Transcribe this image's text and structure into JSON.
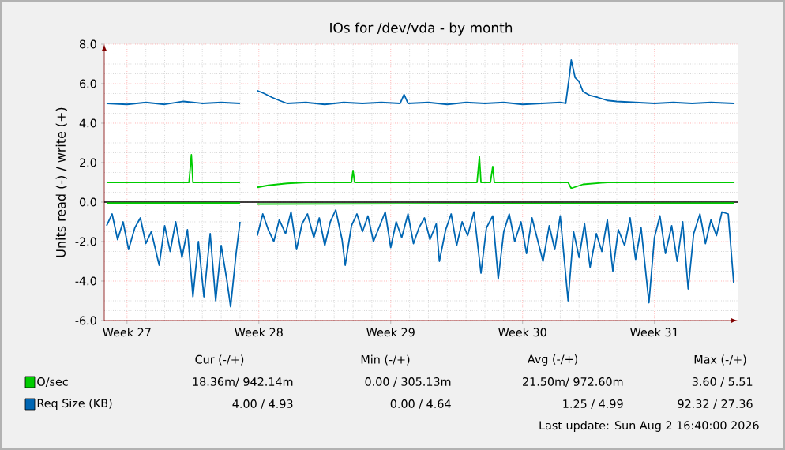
{
  "chart_data": {
    "type": "line",
    "title": "IOs for /dev/vda - by month",
    "ylabel": "Units read (-) / write (+)",
    "xlim": [
      "2026-06-27T19:00",
      "2026-07-31T10:00"
    ],
    "ylim": [
      -6,
      8
    ],
    "xticks": [
      {
        "value": "2026-06-29",
        "label": "Week 27"
      },
      {
        "value": "2026-07-06",
        "label": "Week 28"
      },
      {
        "value": "2026-07-13",
        "label": "Week 29"
      },
      {
        "value": "2026-07-20",
        "label": "Week 30"
      },
      {
        "value": "2026-07-27",
        "label": "Week 31"
      }
    ],
    "yticks": [
      {
        "value": -6,
        "label": "-6.0"
      },
      {
        "value": -4,
        "label": "-4.0"
      },
      {
        "value": -2,
        "label": "-2.0"
      },
      {
        "value": 0,
        "label": "0.0"
      },
      {
        "value": 2,
        "label": "2.0"
      },
      {
        "value": 4,
        "label": "4.0"
      },
      {
        "value": 6,
        "label": "6.0"
      },
      {
        "value": 8,
        "label": "8.0"
      }
    ],
    "grid": true,
    "legend": "bottom",
    "ref_lines": [
      {
        "axis": "y",
        "value": 0,
        "color": "#000000"
      }
    ],
    "series": [
      {
        "name": "O/sec",
        "color": "#00cc00",
        "x": [
          "2026-06-27T22:00",
          "2026-07-02T07:00",
          "2026-07-02T10:00",
          "2026-07-02T12:00",
          "2026-07-05T00:00",
          "2026-07-05T11:00",
          "2026-07-05T22:00",
          "2026-07-06T12:00",
          "2026-07-07T12:00",
          "2026-07-08T12:00",
          "2026-07-10T22:00",
          "2026-07-11T00:00",
          "2026-07-11T02:00",
          "2026-07-17T14:00",
          "2026-07-17T17:00",
          "2026-07-17T19:00",
          "2026-07-18T07:00",
          "2026-07-18T10:00",
          "2026-07-18T12:00",
          "2026-07-22T10:00",
          "2026-07-22T14:00",
          "2026-07-23T05:00",
          "2026-07-24T12:00",
          "2026-07-31T05:00"
        ],
        "values": [
          1.0,
          1.0,
          2.4,
          1.0,
          1.0,
          null,
          0.75,
          0.85,
          0.95,
          1.0,
          1.0,
          1.6,
          1.0,
          1.0,
          2.3,
          1.0,
          1.0,
          1.8,
          1.0,
          1.0,
          0.7,
          0.9,
          1.0,
          1.0
        ]
      },
      {
        "color": "#00cc00",
        "x": [
          "2026-06-27T22:00",
          "2026-07-05T00:00",
          "2026-07-05T11:00",
          "2026-07-05T22:00",
          "2026-07-31T05:00"
        ],
        "values": [
          -0.05,
          -0.05,
          null,
          -0.1,
          -0.05
        ]
      },
      {
        "name": "Req Size (KB)",
        "color": "#0066b3",
        "x": [
          "2026-06-27T22:00",
          "2026-06-29T00:00",
          "2026-06-30T00:00",
          "2026-07-01T00:00",
          "2026-07-02T00:00",
          "2026-07-03T00:00",
          "2026-07-04T00:00",
          "2026-07-05T00:00",
          "2026-07-05T11:00",
          "2026-07-05T22:00",
          "2026-07-06T07:00",
          "2026-07-06T17:00",
          "2026-07-07T02:00",
          "2026-07-07T12:00",
          "2026-07-08T12:00",
          "2026-07-09T12:00",
          "2026-07-10T12:00",
          "2026-07-11T12:00",
          "2026-07-12T12:00",
          "2026-07-13T12:00",
          "2026-07-13T17:00",
          "2026-07-13T22:00",
          "2026-07-15T00:00",
          "2026-07-16T00:00",
          "2026-07-17T00:00",
          "2026-07-18T00:00",
          "2026-07-19T00:00",
          "2026-07-20T00:00",
          "2026-07-21T00:00",
          "2026-07-22T00:00",
          "2026-07-22T07:00",
          "2026-07-22T12:00",
          "2026-07-22T14:00",
          "2026-07-22T19:00",
          "2026-07-23T00:00",
          "2026-07-23T05:00",
          "2026-07-23T14:00",
          "2026-07-24T00:00",
          "2026-07-24T12:00",
          "2026-07-25T00:00",
          "2026-07-26T00:00",
          "2026-07-27T00:00",
          "2026-07-28T00:00",
          "2026-07-29T00:00",
          "2026-07-30T00:00",
          "2026-07-31T05:00"
        ],
        "values": [
          5.0,
          4.95,
          5.05,
          4.95,
          5.1,
          5.0,
          5.05,
          5.0,
          null,
          5.65,
          5.5,
          5.3,
          5.15,
          5.0,
          5.05,
          4.95,
          5.05,
          5.0,
          5.05,
          5.0,
          5.45,
          5.0,
          5.05,
          4.95,
          5.05,
          5.0,
          5.05,
          4.95,
          5.0,
          5.05,
          5.0,
          6.5,
          7.2,
          6.3,
          6.1,
          5.6,
          5.4,
          5.3,
          5.15,
          5.1,
          5.05,
          5.0,
          5.05,
          5.0,
          5.05,
          5.0
        ]
      },
      {
        "color": "#0066b3",
        "x": [
          "2026-06-27T22:00",
          "2026-06-28T05:00",
          "2026-06-28T12:00",
          "2026-06-28T19:00",
          "2026-06-29T02:00",
          "2026-06-29T10:00",
          "2026-06-29T17:00",
          "2026-06-30T00:00",
          "2026-06-30T07:00",
          "2026-06-30T17:00",
          "2026-07-01T00:00",
          "2026-07-01T07:00",
          "2026-07-01T14:00",
          "2026-07-01T22:00",
          "2026-07-02T05:00",
          "2026-07-02T12:00",
          "2026-07-02T19:00",
          "2026-07-03T02:00",
          "2026-07-03T10:00",
          "2026-07-03T17:00",
          "2026-07-04T00:00",
          "2026-07-04T07:00",
          "2026-07-04T12:00",
          "2026-07-04T19:00",
          "2026-07-05T00:00",
          "2026-07-05T11:00",
          "2026-07-05T22:00",
          "2026-07-06T05:00",
          "2026-07-06T12:00",
          "2026-07-06T19:00",
          "2026-07-07T02:00",
          "2026-07-07T10:00",
          "2026-07-07T17:00",
          "2026-07-08T00:00",
          "2026-07-08T07:00",
          "2026-07-08T14:00",
          "2026-07-08T22:00",
          "2026-07-09T05:00",
          "2026-07-09T12:00",
          "2026-07-09T19:00",
          "2026-07-10T02:00",
          "2026-07-10T10:00",
          "2026-07-10T14:00",
          "2026-07-10T22:00",
          "2026-07-11T05:00",
          "2026-07-11T12:00",
          "2026-07-11T19:00",
          "2026-07-12T02:00",
          "2026-07-12T10:00",
          "2026-07-12T17:00",
          "2026-07-13T00:00",
          "2026-07-13T07:00",
          "2026-07-13T14:00",
          "2026-07-13T22:00",
          "2026-07-14T05:00",
          "2026-07-14T12:00",
          "2026-07-14T19:00",
          "2026-07-15T02:00",
          "2026-07-15T10:00",
          "2026-07-15T14:00",
          "2026-07-15T22:00",
          "2026-07-16T05:00",
          "2026-07-16T12:00",
          "2026-07-16T19:00",
          "2026-07-17T02:00",
          "2026-07-17T10:00",
          "2026-07-17T19:00",
          "2026-07-18T02:00",
          "2026-07-18T10:00",
          "2026-07-18T17:00",
          "2026-07-19T00:00",
          "2026-07-19T07:00",
          "2026-07-19T14:00",
          "2026-07-19T22:00",
          "2026-07-20T05:00",
          "2026-07-20T12:00",
          "2026-07-20T19:00",
          "2026-07-21T02:00",
          "2026-07-21T10:00",
          "2026-07-21T17:00",
          "2026-07-22T00:00",
          "2026-07-22T10:00",
          "2026-07-22T17:00",
          "2026-07-23T00:00",
          "2026-07-23T07:00",
          "2026-07-23T14:00",
          "2026-07-23T22:00",
          "2026-07-24T05:00",
          "2026-07-24T12:00",
          "2026-07-24T19:00",
          "2026-07-25T02:00",
          "2026-07-25T10:00",
          "2026-07-25T17:00",
          "2026-07-26T00:00",
          "2026-07-26T07:00",
          "2026-07-26T17:00",
          "2026-07-27T00:00",
          "2026-07-27T07:00",
          "2026-07-27T14:00",
          "2026-07-27T22:00",
          "2026-07-28T05:00",
          "2026-07-28T12:00",
          "2026-07-28T19:00",
          "2026-07-29T02:00",
          "2026-07-29T10:00",
          "2026-07-29T17:00",
          "2026-07-30T00:00",
          "2026-07-30T07:00",
          "2026-07-30T14:00",
          "2026-07-30T22:00",
          "2026-07-31T05:00"
        ],
        "values": [
          -1.2,
          -0.6,
          -1.9,
          -1.0,
          -2.4,
          -1.3,
          -0.8,
          -2.1,
          -1.5,
          -3.2,
          -1.2,
          -2.5,
          -1.0,
          -2.8,
          -1.4,
          -4.8,
          -2.0,
          -4.8,
          -1.6,
          -5.0,
          -2.2,
          -3.9,
          -5.3,
          -2.6,
          -1.0,
          null,
          -1.7,
          -0.6,
          -1.4,
          -2.0,
          -0.9,
          -1.6,
          -0.5,
          -2.4,
          -1.1,
          -0.6,
          -1.8,
          -0.8,
          -2.2,
          -1.0,
          -0.4,
          -1.9,
          -3.2,
          -1.2,
          -0.6,
          -1.5,
          -0.7,
          -2.0,
          -1.2,
          -0.5,
          -2.3,
          -1.0,
          -1.8,
          -0.6,
          -2.1,
          -1.3,
          -0.8,
          -1.9,
          -1.1,
          -3.0,
          -1.4,
          -0.6,
          -2.2,
          -1.0,
          -1.7,
          -0.5,
          -3.6,
          -1.3,
          -0.7,
          -3.9,
          -1.5,
          -0.6,
          -2.0,
          -1.0,
          -2.6,
          -0.8,
          -1.9,
          -3.0,
          -1.2,
          -2.4,
          -0.7,
          -5.0,
          -1.5,
          -2.8,
          -1.1,
          -3.3,
          -1.6,
          -2.5,
          -0.9,
          -3.5,
          -1.4,
          -2.2,
          -0.8,
          -2.9,
          -1.3,
          -5.1,
          -1.8,
          -0.7,
          -2.6,
          -1.2,
          -3.0,
          -1.0,
          -4.4,
          -1.6,
          -0.6,
          -2.1,
          -0.9,
          -1.7,
          -0.5,
          -0.6,
          -4.1
        ]
      }
    ],
    "annotations": [
      "Cur (-/+)",
      "Min (-/+)",
      "Avg (-/+)",
      "Max (-/+)",
      "18.36m/ 942.14m",
      "0.00 / 305.13m",
      "21.50m/ 972.60m",
      "3.60 / 5.51",
      "4.00 / 4.93",
      "0.00 / 4.64",
      "1.25 / 4.99",
      "92.32 / 27.36",
      "Last update: Sun Aug 2 16:40:00 2026"
    ]
  }
}
